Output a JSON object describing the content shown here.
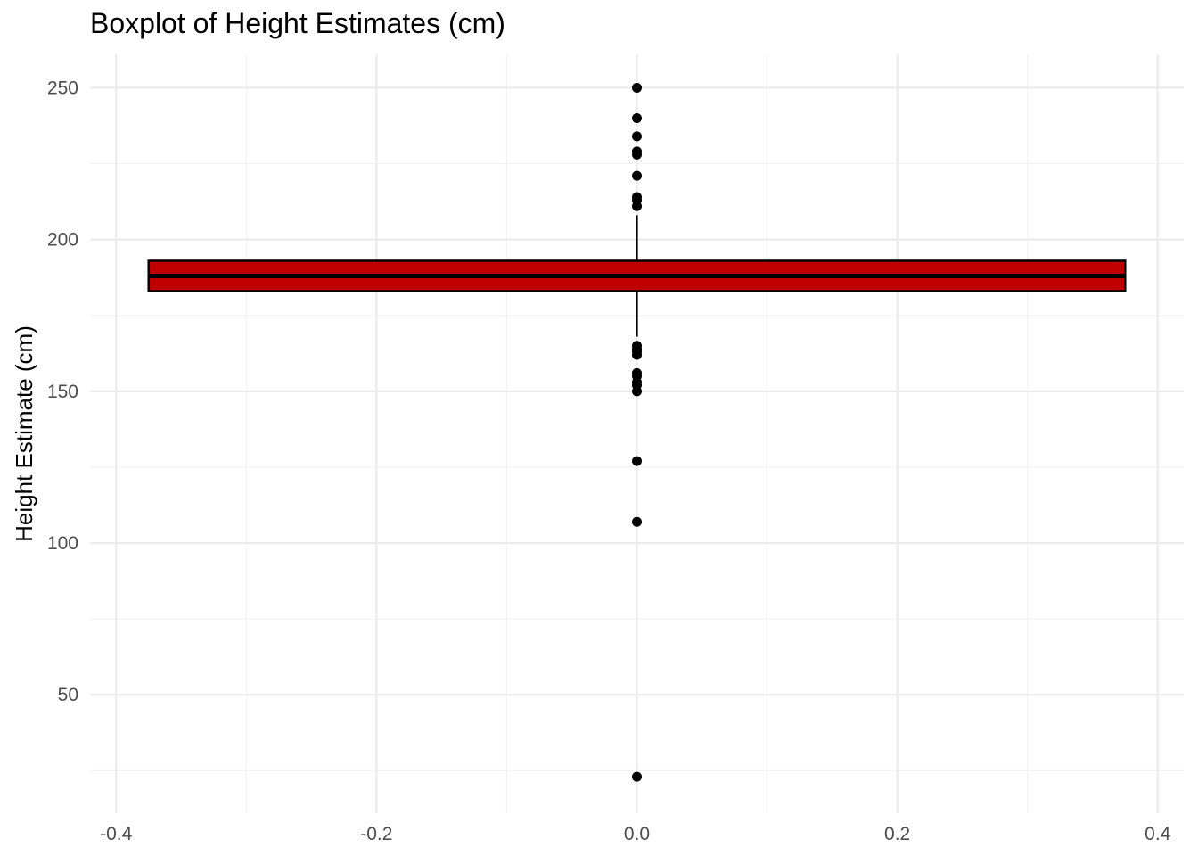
{
  "chart_data": {
    "type": "boxplot",
    "title": "Boxplot of Height Estimates (cm)",
    "xlabel": "",
    "ylabel": "Height Estimate (cm)",
    "xlim": [
      -0.42,
      0.42
    ],
    "ylim": [
      11,
      261
    ],
    "x_ticks": [
      -0.4,
      -0.2,
      0.0,
      0.2,
      0.4
    ],
    "x_tick_labels": [
      "-0.4",
      "-0.2",
      "0.0",
      "0.2",
      "0.4"
    ],
    "y_ticks": [
      50,
      100,
      150,
      200,
      250
    ],
    "y_tick_labels": [
      "50",
      "100",
      "150",
      "200",
      "250"
    ],
    "grid": true,
    "box": {
      "x": 0,
      "width": 0.75,
      "q1": 183,
      "median": 188,
      "q3": 193,
      "whisker_low": 168,
      "whisker_high": 208,
      "fill": "#c00000",
      "outliers": [
        250,
        240,
        234,
        229,
        228,
        221,
        214,
        213,
        211,
        165,
        164,
        163,
        162,
        156,
        155,
        153,
        152,
        150,
        127,
        107,
        23
      ]
    }
  }
}
